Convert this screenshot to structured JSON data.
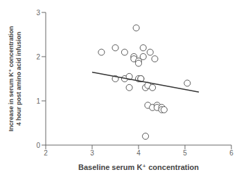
{
  "chart_data": {
    "type": "scatter",
    "xlabel": "Baseline serum K⁺ concentration",
    "ylabel": "Increase in serum K⁺ concentration\n4 hour post amino acid infusion",
    "xlim": [
      2,
      6
    ],
    "ylim": [
      0,
      3
    ],
    "xticks": [
      2,
      3,
      4,
      5,
      6
    ],
    "yticks": [
      0,
      1,
      2,
      3
    ],
    "grid": false,
    "series": [
      {
        "type": "scatter",
        "marker": "circle",
        "color": "#555555",
        "x": [
          3.2,
          3.5,
          3.5,
          3.7,
          3.7,
          3.8,
          3.8,
          3.9,
          3.9,
          3.95,
          4.0,
          4.0,
          4.0,
          4.05,
          4.05,
          4.1,
          4.1,
          4.15,
          4.2,
          4.2,
          4.25,
          4.3,
          4.3,
          4.35,
          4.4,
          4.4,
          4.5,
          4.5,
          4.55,
          5.05,
          4.15
        ],
        "values": [
          2.1,
          2.2,
          1.5,
          2.1,
          1.5,
          1.55,
          1.3,
          2.0,
          1.95,
          2.65,
          1.9,
          1.85,
          1.5,
          1.5,
          1.5,
          2.2,
          2.0,
          1.3,
          1.35,
          0.9,
          2.1,
          1.3,
          0.85,
          1.95,
          0.9,
          0.85,
          0.85,
          0.8,
          0.8,
          1.4,
          0.2
        ]
      },
      {
        "type": "line",
        "color": "#333333",
        "x": [
          3.0,
          5.3
        ],
        "values": [
          1.65,
          1.2
        ]
      }
    ]
  }
}
